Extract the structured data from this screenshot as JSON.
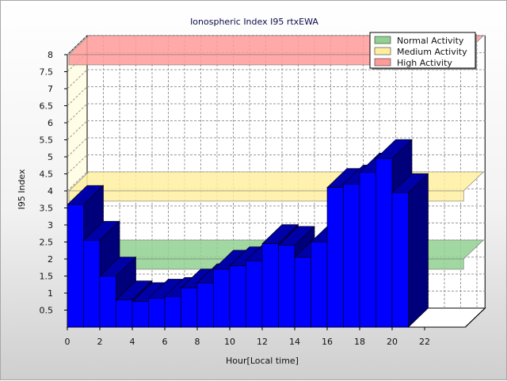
{
  "chart_data": {
    "type": "bar",
    "title": "Ionospheric Index I95 rtxEWA",
    "xlabel": "Hour[Local time]",
    "ylabel": "I95 Index",
    "ylim": [
      0,
      8
    ],
    "x": [
      0,
      1,
      2,
      3,
      4,
      5,
      6,
      7,
      8,
      9,
      10,
      11,
      12,
      13,
      14,
      15,
      16,
      17,
      18,
      19,
      20
    ],
    "values": [
      3.6,
      2.55,
      1.5,
      0.8,
      0.75,
      0.85,
      0.9,
      1.15,
      1.3,
      1.7,
      1.8,
      1.95,
      2.45,
      2.4,
      2.05,
      2.5,
      4.1,
      4.2,
      4.55,
      4.95,
      3.95
    ],
    "x_ticks": [
      "0",
      "2",
      "4",
      "6",
      "8",
      "10",
      "12",
      "14",
      "16",
      "18",
      "20",
      "22"
    ],
    "y_ticks": [
      "0.5",
      "1",
      "1.5",
      "2",
      "2.5",
      "3",
      "3.5",
      "4",
      "4.5",
      "5",
      "5.5",
      "6",
      "6.5",
      "7",
      "7.5",
      "8"
    ],
    "bar_color": "#0000ff",
    "bands": [
      {
        "name": "Normal Activity",
        "level": 2,
        "color": "#90d090"
      },
      {
        "name": "Medium Activity",
        "level": 4,
        "color": "#ffeea0"
      },
      {
        "name": "High Activity",
        "level": 8,
        "color": "#ff9a9a"
      }
    ],
    "legend_position": "top-right",
    "grid": true
  }
}
